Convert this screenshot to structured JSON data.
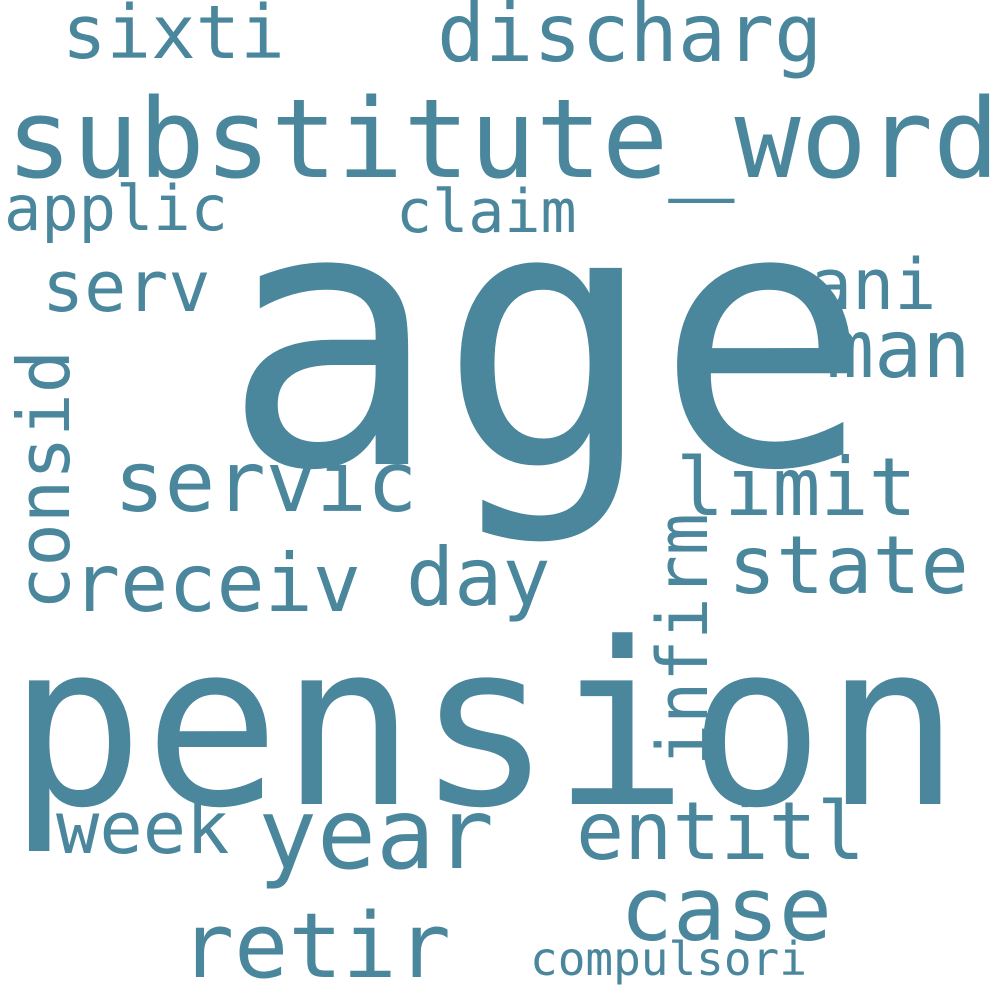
{
  "colors": {
    "background": "#ffffff",
    "word": "#4a869c"
  },
  "words": {
    "sixti": "sixti",
    "discharg": "discharg",
    "substitute_word": "substitute_word",
    "applic": "applic",
    "claim": "claim",
    "serv": "serv",
    "age": "age",
    "ani": "ani",
    "man": "man",
    "consid": "consid",
    "servic": "servic",
    "limit": "limit",
    "receiv": "receiv",
    "day": "day",
    "state": "state",
    "infirm": "infirm",
    "pension": "pension",
    "week": "week",
    "year": "year",
    "entitl": "entitl",
    "case": "case",
    "retir": "retir",
    "compulsori": "compulsori"
  }
}
